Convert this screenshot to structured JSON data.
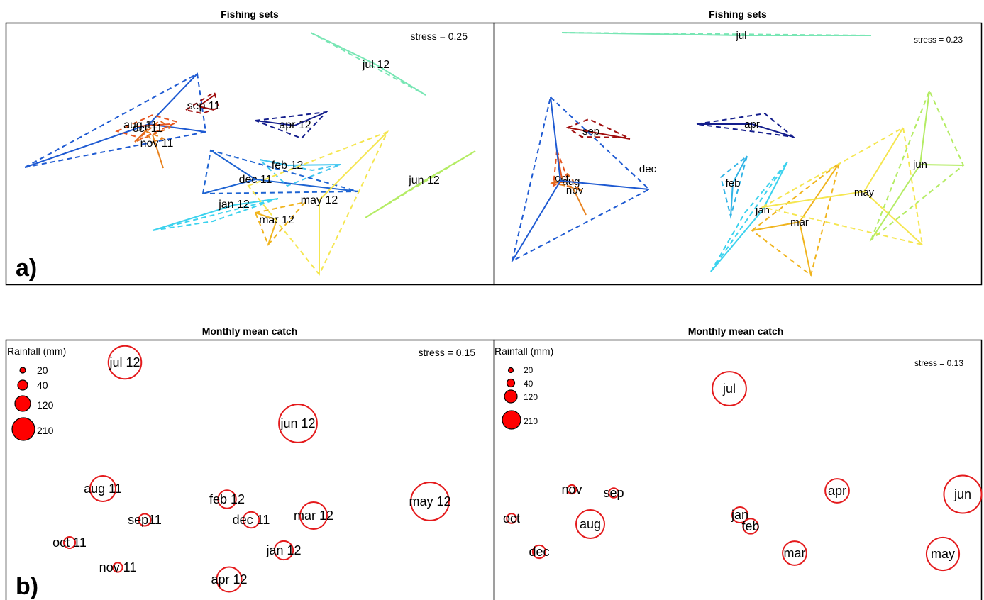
{
  "chart_data": [
    {
      "type": "scatter",
      "subtype": "nmds-polygons",
      "title": "Fishing sets",
      "stress": "stress = 0.25",
      "panel_tag": "a)",
      "axes_visible": false,
      "groups": [
        {
          "label": "aug 11",
          "color": "#e6551e"
        },
        {
          "label": "oct 11",
          "color": "#e46a1c"
        },
        {
          "label": "nov 11",
          "color": "#e8821e"
        },
        {
          "label": "sep 11",
          "color": "#a00f0f"
        },
        {
          "label": "dec 11",
          "color": "#1e64d2"
        },
        {
          "label": "jan 12",
          "color": "#3cd2ee"
        },
        {
          "label": "feb 12",
          "color": "#41c6f0"
        },
        {
          "label": "mar 12",
          "color": "#f0b41e"
        },
        {
          "label": "apr 12",
          "color": "#141e8c"
        },
        {
          "label": "may 12",
          "color": "#f5e650"
        },
        {
          "label": "jun 12",
          "color": "#b4ec64"
        },
        {
          "label": "jul 12",
          "color": "#78e6b4"
        }
      ]
    },
    {
      "type": "scatter",
      "subtype": "nmds-polygons",
      "title": "Fishing sets",
      "stress": "stress = 0.23",
      "axes_visible": false,
      "groups": [
        {
          "label": "oct",
          "color": "#e6551e"
        },
        {
          "label": "aug",
          "color": "#e46a1c"
        },
        {
          "label": "nov",
          "color": "#e8821e"
        },
        {
          "label": "sep",
          "color": "#a00f0f"
        },
        {
          "label": "dec",
          "color": "#1e5ad2"
        },
        {
          "label": "jan",
          "color": "#3cd2ee"
        },
        {
          "label": "feb",
          "color": "#32b4e6"
        },
        {
          "label": "mar",
          "color": "#f0b41e"
        },
        {
          "label": "apr",
          "color": "#141e8c"
        },
        {
          "label": "may",
          "color": "#f5e650"
        },
        {
          "label": "jun",
          "color": "#b4ec64"
        },
        {
          "label": "jul",
          "color": "#78e6b4"
        }
      ]
    },
    {
      "type": "scatter",
      "subtype": "bubble",
      "title": "Monthly mean catch",
      "stress": "stress = 0.15",
      "panel_tag": "b)",
      "axes_visible": false,
      "size_variable": "Rainfall (mm)",
      "legend": {
        "title": "Rainfall (mm)",
        "placement": "top-left",
        "values": [
          20,
          40,
          120,
          210
        ]
      },
      "points": [
        {
          "label": "jul 12",
          "rainfall": 150
        },
        {
          "label": "jun 12",
          "rainfall": 200
        },
        {
          "label": "aug 11",
          "rainfall": 90
        },
        {
          "label": "sep11",
          "rainfall": 20
        },
        {
          "label": "oct 11",
          "rainfall": 18
        },
        {
          "label": "nov 11",
          "rainfall": 12
        },
        {
          "label": "feb 12",
          "rainfall": 45
        },
        {
          "label": "dec 11",
          "rainfall": 35
        },
        {
          "label": "mar 12",
          "rainfall": 100
        },
        {
          "label": "jan 12",
          "rainfall": 48
        },
        {
          "label": "apr 12",
          "rainfall": 85
        },
        {
          "label": "may 12",
          "rainfall": 200
        }
      ]
    },
    {
      "type": "scatter",
      "subtype": "bubble",
      "title": "Monthly mean catch",
      "stress": "stress = 0.13",
      "axes_visible": false,
      "size_variable": "Rainfall (mm)",
      "legend": {
        "title": "Rainfall (mm)",
        "placement": "top-left",
        "values": [
          20,
          40,
          120,
          210
        ]
      },
      "points": [
        {
          "label": "jul",
          "rainfall": 150
        },
        {
          "label": "nov",
          "rainfall": 10
        },
        {
          "label": "sep",
          "rainfall": 12
        },
        {
          "label": "oct",
          "rainfall": 12
        },
        {
          "label": "aug",
          "rainfall": 105
        },
        {
          "label": "dec",
          "rainfall": 22
        },
        {
          "label": "jan",
          "rainfall": 32
        },
        {
          "label": "feb",
          "rainfall": 30
        },
        {
          "label": "apr",
          "rainfall": 75
        },
        {
          "label": "mar",
          "rainfall": 75
        },
        {
          "label": "jun",
          "rainfall": 185
        },
        {
          "label": "may",
          "rainfall": 140
        }
      ]
    }
  ]
}
